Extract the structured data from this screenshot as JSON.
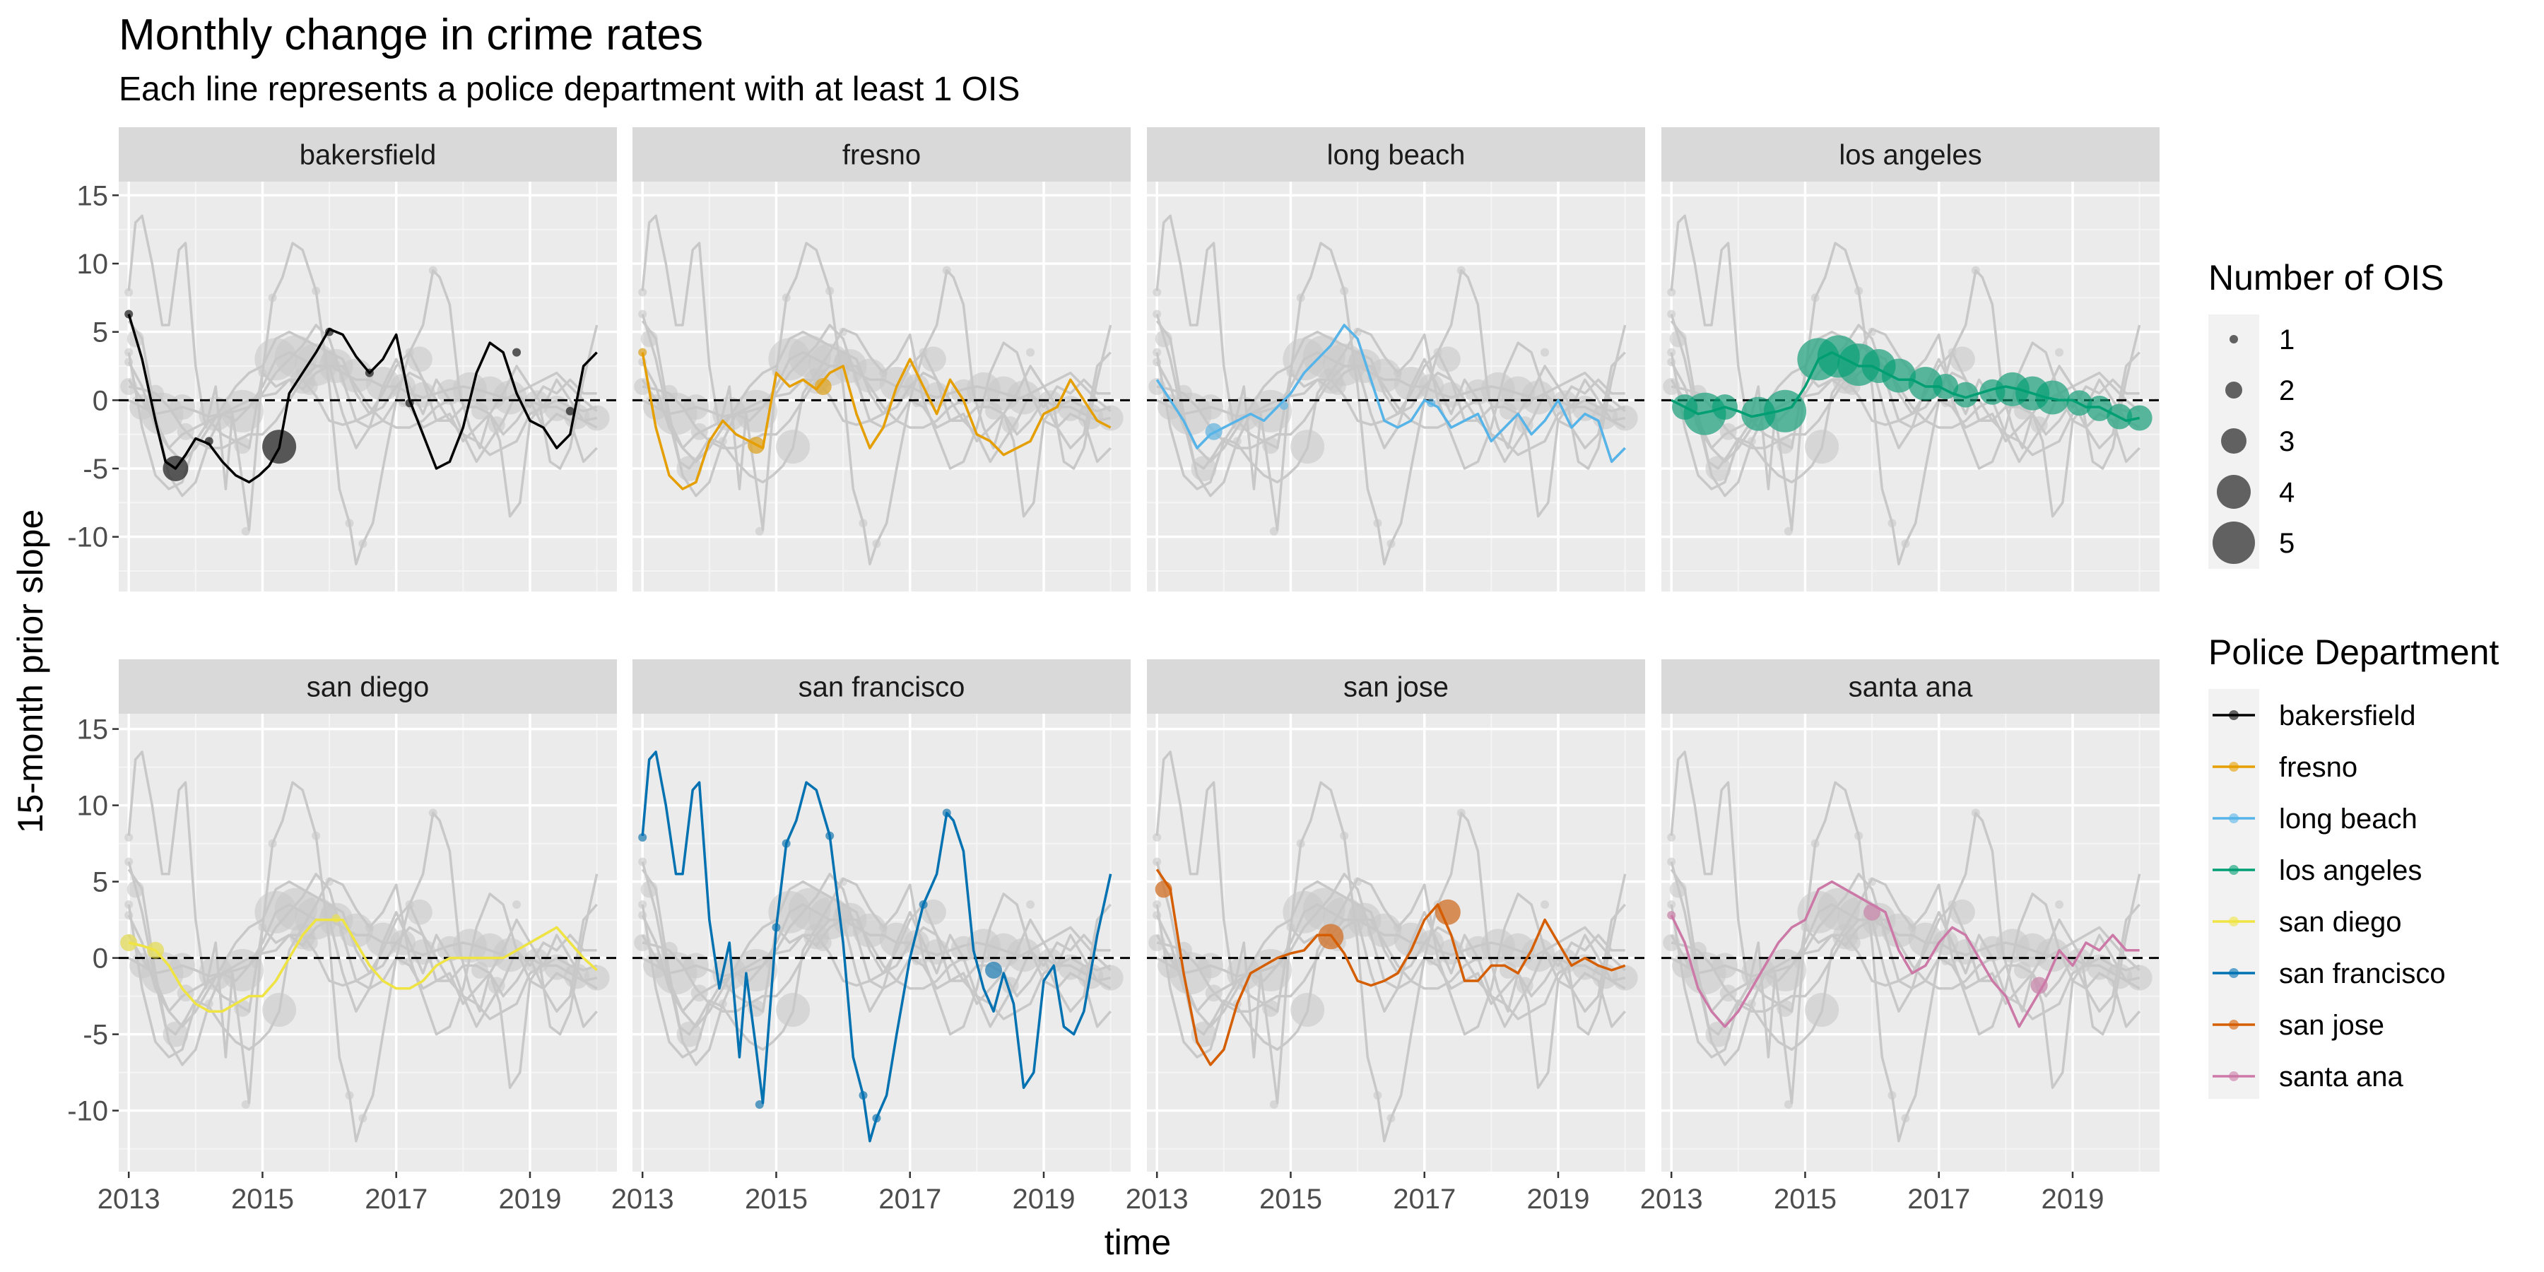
{
  "chart_data": {
    "type": "line",
    "title": "Monthly change in crime rates",
    "subtitle": "Each line represents a police department with at least 1 OIS",
    "xlabel": "time",
    "ylabel": "15-month prior slope",
    "xlim": [
      2012.85,
      2020.3
    ],
    "ylim": [
      -14,
      16
    ],
    "x_ticks": [
      2013,
      2015,
      2017,
      2019
    ],
    "y_ticks": [
      -10,
      -5,
      0,
      5,
      10,
      15
    ],
    "reference_line": {
      "y": 0,
      "style": "dashed"
    },
    "grid": true,
    "facets": [
      "bakersfield",
      "fresno",
      "long beach",
      "los angeles",
      "san diego",
      "san francisco",
      "san jose",
      "santa ana"
    ],
    "background_series_color": "#c8c8c8",
    "size_legend": {
      "title": "Number of OIS",
      "values": [
        1,
        2,
        3,
        4,
        5
      ]
    },
    "color_legend": {
      "title": "Police Department",
      "entries": [
        {
          "name": "bakersfield",
          "color": "#000000"
        },
        {
          "name": "fresno",
          "color": "#E69F00"
        },
        {
          "name": "long beach",
          "color": "#56B4E9"
        },
        {
          "name": "los angeles",
          "color": "#009E73"
        },
        {
          "name": "san diego",
          "color": "#F0E442"
        },
        {
          "name": "san francisco",
          "color": "#0072B2"
        },
        {
          "name": "san jose",
          "color": "#D55E00"
        },
        {
          "name": "santa ana",
          "color": "#CC79A7"
        }
      ]
    },
    "series": [
      {
        "name": "bakersfield",
        "color": "#000000",
        "x": [
          2013.0,
          2013.2,
          2013.4,
          2013.55,
          2013.7,
          2013.85,
          2014.0,
          2014.2,
          2014.4,
          2014.6,
          2014.8,
          2014.95,
          2015.1,
          2015.25,
          2015.4,
          2015.6,
          2015.8,
          2016.0,
          2016.2,
          2016.4,
          2016.6,
          2016.8,
          2017.0,
          2017.2,
          2017.4,
          2017.6,
          2017.8,
          2018.0,
          2018.2,
          2018.4,
          2018.6,
          2018.8,
          2019.0,
          2019.2,
          2019.4,
          2019.6,
          2019.8,
          2020.0
        ],
        "y": [
          6.3,
          3.0,
          -1.5,
          -4.5,
          -5.0,
          -4.0,
          -2.8,
          -3.2,
          -4.5,
          -5.5,
          -6.0,
          -5.5,
          -4.8,
          -3.5,
          0.5,
          2.0,
          3.5,
          5.2,
          4.8,
          3.2,
          2.0,
          3.0,
          4.8,
          0.0,
          -2.5,
          -5.0,
          -4.5,
          -2.0,
          2.0,
          4.2,
          3.5,
          0.5,
          -1.5,
          -2.0,
          -3.5,
          -2.5,
          2.5,
          3.5
        ],
        "ois": [
          {
            "x": 2013.0,
            "y": 6.3,
            "n": 1
          },
          {
            "x": 2013.7,
            "y": -5.0,
            "n": 3
          },
          {
            "x": 2014.2,
            "y": -3.0,
            "n": 1
          },
          {
            "x": 2015.25,
            "y": -3.4,
            "n": 4
          },
          {
            "x": 2016.0,
            "y": 5.0,
            "n": 1
          },
          {
            "x": 2016.6,
            "y": 2.0,
            "n": 1
          },
          {
            "x": 2017.2,
            "y": -0.2,
            "n": 1
          },
          {
            "x": 2018.8,
            "y": 3.5,
            "n": 1
          },
          {
            "x": 2019.6,
            "y": -0.8,
            "n": 1
          }
        ]
      },
      {
        "name": "fresno",
        "color": "#E69F00",
        "x": [
          2013.0,
          2013.2,
          2013.4,
          2013.6,
          2013.8,
          2014.0,
          2014.2,
          2014.4,
          2014.6,
          2014.8,
          2015.0,
          2015.2,
          2015.4,
          2015.6,
          2015.8,
          2016.0,
          2016.2,
          2016.4,
          2016.6,
          2016.8,
          2017.0,
          2017.2,
          2017.4,
          2017.6,
          2017.8,
          2018.0,
          2018.2,
          2018.4,
          2018.6,
          2018.8,
          2019.0,
          2019.2,
          2019.4,
          2019.6,
          2019.8,
          2020.0
        ],
        "y": [
          3.5,
          -2.0,
          -5.5,
          -6.5,
          -6.0,
          -3.0,
          -1.5,
          -2.5,
          -3.0,
          -3.5,
          2.0,
          1.0,
          1.5,
          0.8,
          2.0,
          2.5,
          -1.0,
          -3.5,
          -2.0,
          1.0,
          3.0,
          1.0,
          -1.0,
          1.5,
          0.0,
          -2.5,
          -3.0,
          -4.0,
          -3.5,
          -3.0,
          -1.0,
          -0.5,
          1.5,
          0.0,
          -1.5,
          -2.0
        ],
        "ois": [
          {
            "x": 2013.0,
            "y": 3.5,
            "n": 1
          },
          {
            "x": 2014.7,
            "y": -3.3,
            "n": 2
          },
          {
            "x": 2015.7,
            "y": 1.0,
            "n": 2
          }
        ]
      },
      {
        "name": "long beach",
        "color": "#56B4E9",
        "x": [
          2013.0,
          2013.2,
          2013.4,
          2013.6,
          2013.8,
          2014.0,
          2014.2,
          2014.4,
          2014.6,
          2014.8,
          2015.0,
          2015.2,
          2015.4,
          2015.6,
          2015.8,
          2016.0,
          2016.2,
          2016.4,
          2016.6,
          2016.8,
          2017.0,
          2017.2,
          2017.4,
          2017.6,
          2017.8,
          2018.0,
          2018.2,
          2018.4,
          2018.6,
          2018.8,
          2019.0,
          2019.2,
          2019.4,
          2019.6,
          2019.8,
          2020.0
        ],
        "y": [
          1.5,
          0.0,
          -1.5,
          -3.5,
          -2.5,
          -2.0,
          -1.5,
          -1.0,
          -1.5,
          -0.5,
          0.5,
          2.0,
          3.0,
          4.0,
          5.5,
          4.5,
          1.5,
          -1.5,
          -2.0,
          -1.5,
          0.0,
          -0.5,
          -2.0,
          -1.5,
          -1.0,
          -3.0,
          -2.0,
          -1.0,
          -2.5,
          -1.5,
          0.0,
          -2.0,
          -1.0,
          -1.5,
          -4.5,
          -3.5
        ],
        "ois": [
          {
            "x": 2013.85,
            "y": -2.3,
            "n": 2
          },
          {
            "x": 2014.9,
            "y": -0.4,
            "n": 1
          },
          {
            "x": 2017.1,
            "y": -0.2,
            "n": 1
          }
        ]
      },
      {
        "name": "los angeles",
        "color": "#009E73",
        "x": [
          2013.0,
          2013.2,
          2013.4,
          2013.6,
          2013.8,
          2014.0,
          2014.2,
          2014.4,
          2014.6,
          2014.8,
          2015.0,
          2015.2,
          2015.4,
          2015.6,
          2015.8,
          2016.0,
          2016.2,
          2016.4,
          2016.6,
          2016.8,
          2017.0,
          2017.2,
          2017.4,
          2017.6,
          2017.8,
          2018.0,
          2018.2,
          2018.4,
          2018.6,
          2018.8,
          2019.0,
          2019.2,
          2019.4,
          2019.6,
          2019.8,
          2020.0
        ],
        "y": [
          0.0,
          -0.5,
          -1.0,
          -0.8,
          -0.5,
          -0.8,
          -1.2,
          -1.0,
          -0.8,
          -0.5,
          1.0,
          3.0,
          3.5,
          3.0,
          2.5,
          2.5,
          2.0,
          1.5,
          1.5,
          1.0,
          1.0,
          0.5,
          0.2,
          0.5,
          0.8,
          1.0,
          0.8,
          0.5,
          0.2,
          0.0,
          0.0,
          -0.5,
          -0.5,
          -1.0,
          -1.5,
          -1.3
        ],
        "ois": [
          {
            "x": 2013.2,
            "y": -0.5,
            "n": 3
          },
          {
            "x": 2013.5,
            "y": -1.0,
            "n": 5
          },
          {
            "x": 2013.8,
            "y": -0.5,
            "n": 3
          },
          {
            "x": 2014.3,
            "y": -1.0,
            "n": 4
          },
          {
            "x": 2014.7,
            "y": -0.8,
            "n": 5
          },
          {
            "x": 2015.2,
            "y": 3.0,
            "n": 5
          },
          {
            "x": 2015.5,
            "y": 3.2,
            "n": 5
          },
          {
            "x": 2015.8,
            "y": 2.6,
            "n": 5
          },
          {
            "x": 2016.1,
            "y": 2.5,
            "n": 4
          },
          {
            "x": 2016.4,
            "y": 1.8,
            "n": 4
          },
          {
            "x": 2016.8,
            "y": 1.2,
            "n": 4
          },
          {
            "x": 2017.1,
            "y": 1.0,
            "n": 3
          },
          {
            "x": 2017.4,
            "y": 0.4,
            "n": 3
          },
          {
            "x": 2017.8,
            "y": 0.6,
            "n": 3
          },
          {
            "x": 2018.1,
            "y": 0.8,
            "n": 4
          },
          {
            "x": 2018.4,
            "y": 0.5,
            "n": 4
          },
          {
            "x": 2018.7,
            "y": 0.2,
            "n": 4
          },
          {
            "x": 2019.1,
            "y": -0.2,
            "n": 3
          },
          {
            "x": 2019.4,
            "y": -0.6,
            "n": 3
          },
          {
            "x": 2019.7,
            "y": -1.2,
            "n": 3
          },
          {
            "x": 2020.0,
            "y": -1.3,
            "n": 3
          }
        ]
      },
      {
        "name": "san diego",
        "color": "#F0E442",
        "x": [
          2013.0,
          2013.2,
          2013.4,
          2013.6,
          2013.8,
          2014.0,
          2014.2,
          2014.4,
          2014.6,
          2014.8,
          2015.0,
          2015.2,
          2015.4,
          2015.6,
          2015.8,
          2016.0,
          2016.2,
          2016.4,
          2016.6,
          2016.8,
          2017.0,
          2017.2,
          2017.4,
          2017.6,
          2017.8,
          2018.0,
          2018.2,
          2018.4,
          2018.6,
          2018.8,
          2019.0,
          2019.2,
          2019.4,
          2019.6,
          2019.8,
          2020.0
        ],
        "y": [
          1.0,
          0.8,
          0.5,
          -0.5,
          -2.0,
          -3.0,
          -3.5,
          -3.5,
          -3.0,
          -2.5,
          -2.5,
          -1.5,
          0.0,
          1.5,
          2.5,
          2.5,
          2.5,
          1.0,
          -0.5,
          -1.5,
          -2.0,
          -2.0,
          -1.5,
          -0.5,
          0.0,
          0.0,
          0.0,
          0.0,
          0.0,
          0.5,
          1.0,
          1.5,
          2.0,
          1.0,
          0.0,
          -0.8
        ],
        "ois": [
          {
            "x": 2013.0,
            "y": 1.0,
            "n": 2
          },
          {
            "x": 2013.4,
            "y": 0.5,
            "n": 2
          },
          {
            "x": 2016.1,
            "y": 2.6,
            "n": 1
          }
        ]
      },
      {
        "name": "san francisco",
        "color": "#0072B2",
        "x": [
          2013.0,
          2013.1,
          2013.2,
          2013.35,
          2013.5,
          2013.6,
          2013.75,
          2013.85,
          2014.0,
          2014.15,
          2014.3,
          2014.45,
          2014.55,
          2014.7,
          2014.8,
          2015.0,
          2015.15,
          2015.3,
          2015.45,
          2015.6,
          2015.8,
          2016.0,
          2016.15,
          2016.3,
          2016.4,
          2016.5,
          2016.65,
          2016.8,
          2017.0,
          2017.2,
          2017.4,
          2017.55,
          2017.65,
          2017.8,
          2017.95,
          2018.1,
          2018.25,
          2018.4,
          2018.55,
          2018.7,
          2018.85,
          2019.0,
          2019.15,
          2019.3,
          2019.45,
          2019.6,
          2019.8,
          2020.0
        ],
        "y": [
          8.0,
          13.0,
          13.5,
          10.0,
          5.5,
          5.5,
          11.0,
          11.5,
          2.5,
          -2.0,
          1.0,
          -6.5,
          -1.0,
          -6.0,
          -9.5,
          2.0,
          7.5,
          9.0,
          11.5,
          11.0,
          8.0,
          1.0,
          -6.5,
          -9.0,
          -12.0,
          -10.5,
          -9.0,
          -5.0,
          0.0,
          3.5,
          5.5,
          9.5,
          9.0,
          7.0,
          0.5,
          -2.0,
          -3.5,
          -1.0,
          -3.0,
          -8.5,
          -7.5,
          -1.5,
          -0.5,
          -4.5,
          -5.0,
          -3.5,
          1.5,
          5.5
        ],
        "ois": [
          {
            "x": 2013.0,
            "y": 7.9,
            "n": 1
          },
          {
            "x": 2014.75,
            "y": -9.6,
            "n": 1
          },
          {
            "x": 2015.0,
            "y": 2.0,
            "n": 1
          },
          {
            "x": 2015.15,
            "y": 7.5,
            "n": 1
          },
          {
            "x": 2015.8,
            "y": 8.0,
            "n": 1
          },
          {
            "x": 2016.3,
            "y": -9.0,
            "n": 1
          },
          {
            "x": 2016.5,
            "y": -10.5,
            "n": 1
          },
          {
            "x": 2017.2,
            "y": 3.5,
            "n": 1
          },
          {
            "x": 2017.55,
            "y": 9.5,
            "n": 1
          },
          {
            "x": 2018.25,
            "y": -0.8,
            "n": 2
          }
        ]
      },
      {
        "name": "san jose",
        "color": "#D55E00",
        "x": [
          2013.0,
          2013.2,
          2013.4,
          2013.6,
          2013.8,
          2014.0,
          2014.2,
          2014.4,
          2014.6,
          2014.8,
          2015.0,
          2015.2,
          2015.4,
          2015.6,
          2015.8,
          2016.0,
          2016.2,
          2016.4,
          2016.6,
          2016.8,
          2017.0,
          2017.2,
          2017.4,
          2017.6,
          2017.8,
          2018.0,
          2018.2,
          2018.4,
          2018.6,
          2018.8,
          2019.0,
          2019.2,
          2019.4,
          2019.6,
          2019.8,
          2020.0
        ],
        "y": [
          5.8,
          4.5,
          -1.0,
          -5.5,
          -7.0,
          -6.0,
          -3.0,
          -1.0,
          -0.5,
          0.0,
          0.3,
          0.5,
          1.5,
          1.5,
          0.3,
          -1.5,
          -1.8,
          -1.5,
          -1.0,
          0.5,
          2.5,
          3.5,
          1.5,
          -1.5,
          -1.5,
          -0.5,
          -0.5,
          -1.0,
          0.5,
          2.5,
          1.0,
          -0.5,
          0.0,
          -0.5,
          -0.8,
          -0.5
        ],
        "ois": [
          {
            "x": 2013.1,
            "y": 4.5,
            "n": 2
          },
          {
            "x": 2015.6,
            "y": 1.4,
            "n": 3
          },
          {
            "x": 2017.35,
            "y": 3.0,
            "n": 3
          }
        ]
      },
      {
        "name": "santa ana",
        "color": "#CC79A7",
        "x": [
          2013.0,
          2013.2,
          2013.4,
          2013.6,
          2013.8,
          2014.0,
          2014.2,
          2014.4,
          2014.6,
          2014.8,
          2015.0,
          2015.2,
          2015.4,
          2015.6,
          2015.8,
          2016.0,
          2016.2,
          2016.4,
          2016.6,
          2016.8,
          2017.0,
          2017.2,
          2017.4,
          2017.6,
          2017.8,
          2018.0,
          2018.2,
          2018.4,
          2018.6,
          2018.8,
          2019.0,
          2019.2,
          2019.4,
          2019.6,
          2019.8,
          2020.0
        ],
        "y": [
          2.8,
          1.0,
          -2.0,
          -3.5,
          -4.5,
          -3.5,
          -2.0,
          -0.5,
          1.0,
          2.0,
          2.5,
          4.5,
          5.0,
          4.5,
          4.0,
          3.5,
          3.0,
          0.5,
          -1.0,
          -0.5,
          1.0,
          2.0,
          1.5,
          0.0,
          -1.5,
          -2.5,
          -4.5,
          -3.0,
          -1.5,
          0.5,
          -0.5,
          1.0,
          0.5,
          1.5,
          0.5,
          0.5
        ],
        "ois": [
          {
            "x": 2013.0,
            "y": 2.8,
            "n": 1
          },
          {
            "x": 2016.0,
            "y": 3.0,
            "n": 2
          },
          {
            "x": 2018.5,
            "y": -1.8,
            "n": 2
          }
        ]
      }
    ]
  }
}
